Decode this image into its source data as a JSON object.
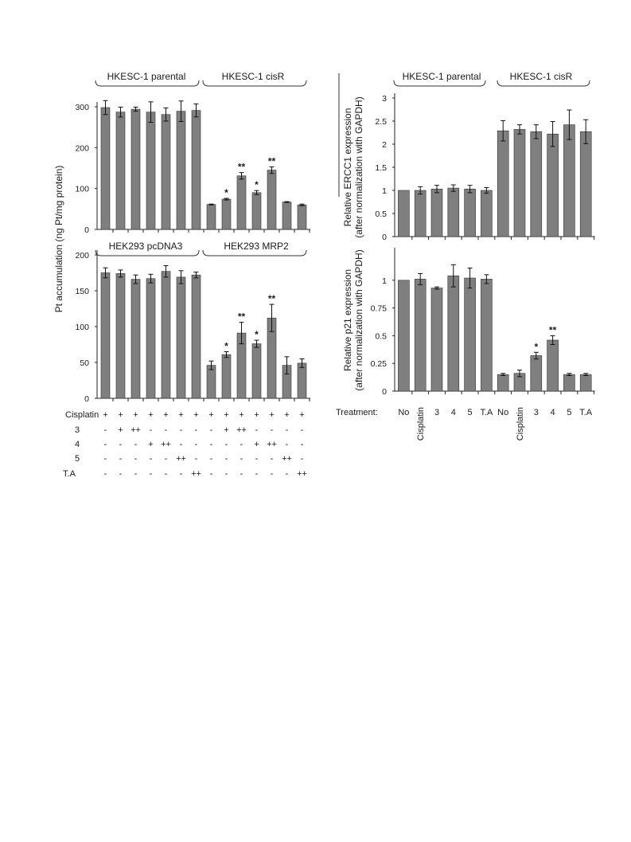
{
  "chart_data": [
    {
      "type": "bar",
      "panel": "left-top",
      "group_labels": [
        "HKESC-1 parental",
        "HKESC-1 cisR"
      ],
      "ylim": [
        0,
        300
      ],
      "yticks": [
        "0",
        "100",
        "200",
        "300"
      ],
      "values": [
        298,
        287,
        294,
        287,
        281,
        289,
        291,
        61,
        74,
        131,
        90,
        145,
        67,
        60
      ],
      "errors": [
        17,
        12,
        5,
        25,
        16,
        25,
        16,
        1,
        2,
        8,
        5,
        8,
        1,
        2
      ],
      "stars": [
        "",
        "",
        "",
        "",
        "",
        "",
        "",
        "",
        "*",
        "**",
        "*",
        "**",
        "",
        ""
      ]
    },
    {
      "type": "bar",
      "panel": "left-bottom",
      "group_labels": [
        "HEK293 pcDNA3",
        "HEK293 MRP2"
      ],
      "ylim": [
        0,
        200
      ],
      "yticks": [
        "0",
        "50",
        "100",
        "150",
        "200"
      ],
      "values": [
        175,
        174,
        166,
        167,
        177,
        169,
        172,
        46,
        61,
        91,
        76,
        112,
        46,
        49
      ],
      "errors": [
        7,
        5,
        6,
        6,
        8,
        9,
        4,
        6,
        4,
        15,
        5,
        19,
        12,
        6
      ],
      "stars": [
        "",
        "",
        "",
        "",
        "",
        "",
        "",
        "",
        "*",
        "**",
        "*",
        "**",
        "",
        ""
      ]
    },
    {
      "type": "bar",
      "panel": "right-top",
      "group_labels": [
        "HKESC-1 parental",
        "HKESC-1 cisR"
      ],
      "ylim": [
        0,
        3
      ],
      "yticks": [
        "0",
        "0.5",
        "1",
        "1.5",
        "2",
        "2.5",
        "3"
      ],
      "values": [
        1.0,
        1.0,
        1.03,
        1.05,
        1.03,
        1.0,
        2.29,
        2.32,
        2.27,
        2.22,
        2.42,
        2.27
      ],
      "errors": [
        0,
        0.08,
        0.08,
        0.07,
        0.08,
        0.06,
        0.22,
        0.1,
        0.15,
        0.27,
        0.32,
        0.26
      ],
      "stars": [
        "",
        "",
        "",
        "",
        "",
        "",
        "",
        "",
        "",
        "",
        "",
        ""
      ]
    },
    {
      "type": "bar",
      "panel": "right-bottom",
      "ylim": [
        0,
        1.25
      ],
      "yticks": [
        "0",
        "0.25",
        "0.5",
        "0.75",
        "1"
      ],
      "values": [
        1.0,
        1.01,
        0.93,
        1.04,
        1.02,
        1.01,
        0.15,
        0.16,
        0.32,
        0.46,
        0.15,
        0.15
      ],
      "errors": [
        0,
        0.05,
        0.01,
        0.1,
        0.09,
        0.04,
        0.01,
        0.03,
        0.03,
        0.04,
        0.01,
        0.01
      ],
      "stars": [
        "",
        "",
        "",
        "",
        "",
        "",
        "",
        "",
        "*",
        "**",
        "",
        ""
      ]
    }
  ],
  "left_ylabel": "Pt accumulation (ng Pt/mg protein)",
  "right_top_ylabel": [
    "Relative ERCC1 expression",
    "(after normalization with GAPDH)"
  ],
  "right_bottom_ylabel": [
    "Relative p21 expression",
    "(after normalization with GAPDH)"
  ],
  "left_conditions": [
    {
      "label": "Cisplatin",
      "marks": [
        "+",
        "+",
        "+",
        "+",
        "+",
        "+",
        "+",
        "+",
        "+",
        "+",
        "+",
        "+",
        "+",
        "+"
      ]
    },
    {
      "label": "3",
      "marks": [
        "-",
        "+",
        "++",
        "-",
        "-",
        "-",
        "-",
        "-",
        "+",
        "++",
        "-",
        "-",
        "-",
        "-"
      ]
    },
    {
      "label": "4",
      "marks": [
        "-",
        "-",
        "-",
        "+",
        "++",
        "-",
        "-",
        "-",
        "-",
        "-",
        "+",
        "++",
        "-",
        "-"
      ]
    },
    {
      "label": "5",
      "marks": [
        "-",
        "-",
        "-",
        "-",
        "-",
        "++",
        "-",
        "-",
        "-",
        "-",
        "-",
        "-",
        "++",
        "-"
      ]
    },
    {
      "label": "T.A",
      "marks": [
        "-",
        "-",
        "-",
        "-",
        "-",
        "-",
        "++",
        "-",
        "-",
        "-",
        "-",
        "-",
        "-",
        "++"
      ]
    }
  ],
  "right_treatment_label": "Treatment:",
  "right_treatments": [
    "No",
    "Cisplatin",
    "3",
    "4",
    "5",
    "T.A",
    "No",
    "Cisplatin",
    "3",
    "4",
    "5",
    "T.A"
  ]
}
